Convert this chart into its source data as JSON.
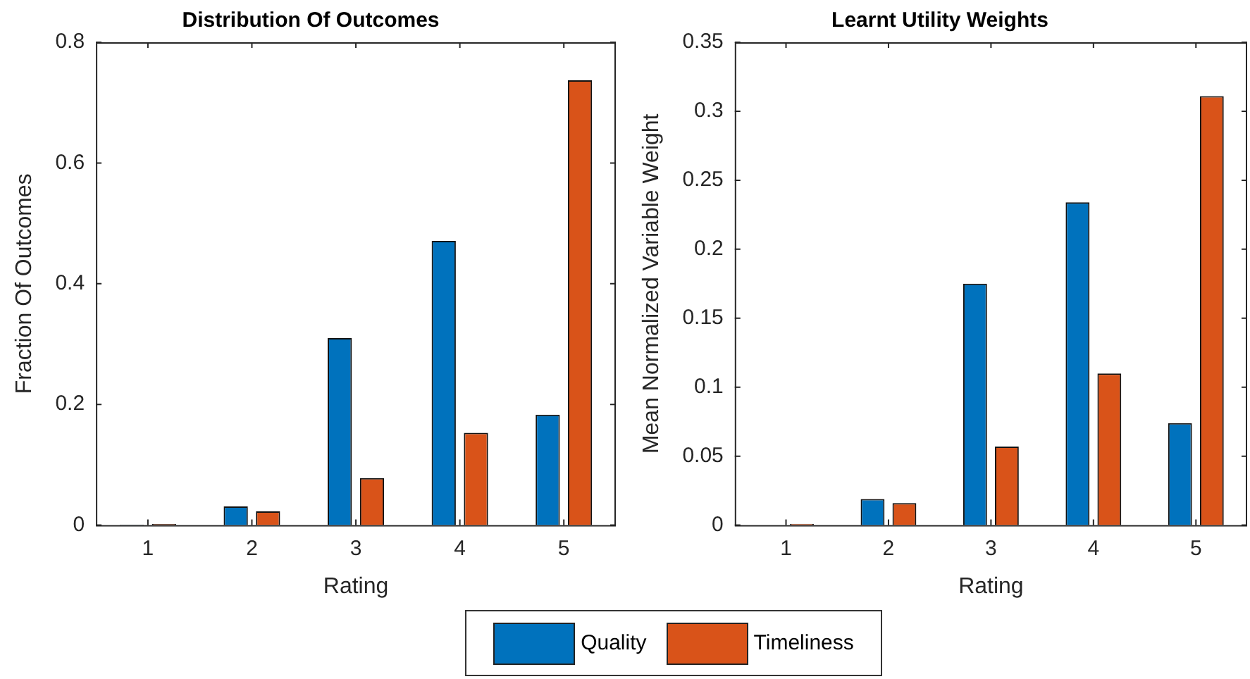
{
  "chart_data": [
    {
      "type": "bar",
      "title": "Distribution Of Outcomes",
      "xlabel": "Rating",
      "ylabel": "Fraction Of Outcomes",
      "categories": [
        "1",
        "2",
        "3",
        "4",
        "5"
      ],
      "series": [
        {
          "name": "Quality",
          "color": "#0072bd",
          "values": [
            0.001,
            0.031,
            0.31,
            0.471,
            0.183
          ]
        },
        {
          "name": "Timeliness",
          "color": "#d95319",
          "values": [
            0.002,
            0.023,
            0.078,
            0.153,
            0.737
          ]
        }
      ],
      "ylim": [
        0,
        0.8
      ],
      "yticks": [
        0,
        0.2,
        0.4,
        0.6,
        0.8
      ],
      "legend": "bottom"
    },
    {
      "type": "bar",
      "title": "Learnt Utility Weights",
      "xlabel": "Rating",
      "ylabel": "Mean Normalized Variable Weight",
      "categories": [
        "1",
        "2",
        "3",
        "4",
        "5"
      ],
      "series": [
        {
          "color": "#0072bd",
          "values": [
            0,
            0.019,
            0.175,
            0.234,
            0.074
          ]
        },
        {
          "color": "#d95319",
          "values": [
            0.001,
            0.016,
            0.057,
            0.11,
            0.311
          ]
        }
      ],
      "ylim": [
        0,
        0.35
      ],
      "yticks": [
        0,
        0.05,
        0.1,
        0.15,
        0.2,
        0.25,
        0.3,
        0.35
      ]
    }
  ]
}
